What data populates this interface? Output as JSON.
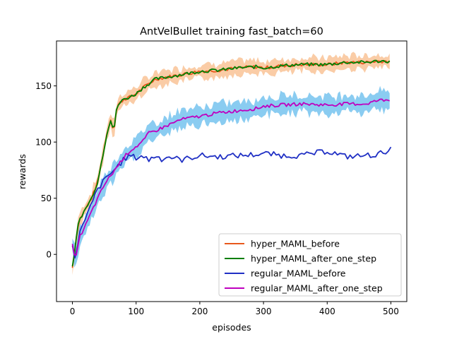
{
  "chart_data": {
    "type": "line",
    "title": "AntVelBullet training fast_batch=60",
    "xlabel": "episodes",
    "ylabel": "rewards",
    "xlim": [
      -25,
      525
    ],
    "ylim": [
      -42,
      190
    ],
    "xticks": [
      0,
      100,
      200,
      300,
      400,
      500
    ],
    "yticks": [
      0,
      50,
      100,
      150
    ],
    "xtick_labels": [
      "0",
      "100",
      "200",
      "300",
      "400",
      "500"
    ],
    "ytick_labels": [
      "0",
      "50",
      "100",
      "150"
    ],
    "grid": false,
    "legend_position": "lower-right",
    "series": [
      {
        "name": "hyper_MAML_before",
        "color": "#e8581c",
        "band_color": "#f5a35c",
        "x": [
          0,
          5,
          10,
          20,
          30,
          40,
          50,
          55,
          60,
          65,
          70,
          80,
          90,
          100,
          110,
          120,
          130,
          150,
          170,
          200,
          230,
          260,
          290,
          300,
          330,
          360,
          400,
          430,
          460,
          480,
          500
        ],
        "values": [
          -12,
          10,
          30,
          40,
          50,
          65,
          95,
          110,
          120,
          110,
          132,
          138,
          140,
          143,
          148,
          152,
          156,
          158,
          160,
          163,
          164,
          166,
          167,
          166,
          168,
          169,
          169,
          171,
          171,
          172,
          172
        ]
      },
      {
        "name": "hyper_MAML_after_one_step",
        "color": "#007f00",
        "x": [
          0,
          5,
          10,
          20,
          30,
          40,
          50,
          55,
          60,
          65,
          70,
          80,
          90,
          100,
          110,
          120,
          130,
          150,
          170,
          200,
          230,
          260,
          290,
          300,
          330,
          360,
          400,
          430,
          460,
          480,
          500
        ],
        "values": [
          -12,
          10,
          30,
          40,
          50,
          65,
          95,
          110,
          120,
          110,
          132,
          138,
          140,
          143,
          148,
          152,
          156,
          158,
          160,
          163,
          164,
          166,
          167,
          166,
          168,
          169,
          169,
          171,
          171,
          172,
          172
        ]
      },
      {
        "name": "regular_MAML_before",
        "color": "#1f2fc4",
        "x": [
          0,
          5,
          10,
          20,
          30,
          40,
          50,
          60,
          70,
          80,
          90,
          100,
          110,
          120,
          130,
          140,
          150,
          160,
          170,
          200,
          230,
          260,
          290,
          300,
          330,
          360,
          400,
          430,
          460,
          480,
          500
        ],
        "values": [
          6,
          -4,
          18,
          30,
          45,
          58,
          66,
          72,
          78,
          84,
          88,
          86,
          88,
          84,
          88,
          85,
          87,
          86,
          84,
          88,
          87,
          88,
          89,
          90,
          88,
          88,
          92,
          87,
          88,
          89,
          94
        ]
      },
      {
        "name": "regular_MAML_after_one_step",
        "color": "#bf00bf",
        "band_color": "#29a3e6",
        "x": [
          0,
          5,
          10,
          20,
          30,
          40,
          50,
          60,
          70,
          80,
          90,
          100,
          110,
          120,
          130,
          150,
          170,
          200,
          230,
          260,
          290,
          300,
          330,
          360,
          400,
          430,
          460,
          480,
          500
        ],
        "values": [
          8,
          -6,
          14,
          25,
          38,
          50,
          62,
          70,
          78,
          86,
          92,
          96,
          100,
          108,
          110,
          115,
          120,
          123,
          126,
          128,
          130,
          132,
          133,
          134,
          133,
          134,
          134,
          137,
          138
        ]
      }
    ]
  }
}
